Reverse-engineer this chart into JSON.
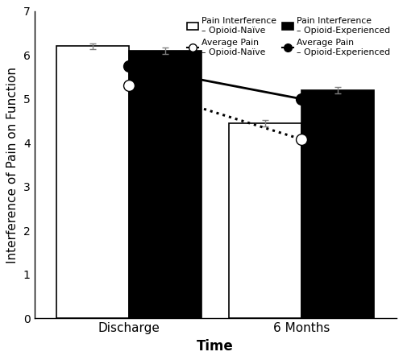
{
  "time_labels": [
    "Discharge",
    "6 Months"
  ],
  "bar_naive": [
    6.2,
    4.45
  ],
  "bar_exp": [
    6.1,
    5.2
  ],
  "bar_naive_err": [
    0.07,
    0.07
  ],
  "bar_exp_err": [
    0.07,
    0.07
  ],
  "line_naive_pain": [
    5.3,
    4.08
  ],
  "line_naive_pain_err": [
    0.08,
    0.08
  ],
  "line_exp_pain": [
    5.75,
    5.0
  ],
  "line_exp_pain_err": [
    0.08,
    0.08
  ],
  "bar_width": 0.42,
  "group_centers": [
    0.0,
    1.0
  ],
  "ylim": [
    0,
    7
  ],
  "yticks": [
    0,
    1,
    2,
    3,
    4,
    5,
    6,
    7
  ],
  "ylabel": "Interference of Pain on Function",
  "xlabel": "Time",
  "background_color": "#ffffff",
  "bar_naive_color": "#ffffff",
  "bar_exp_color": "#000000",
  "bar_edgecolor": "#000000"
}
